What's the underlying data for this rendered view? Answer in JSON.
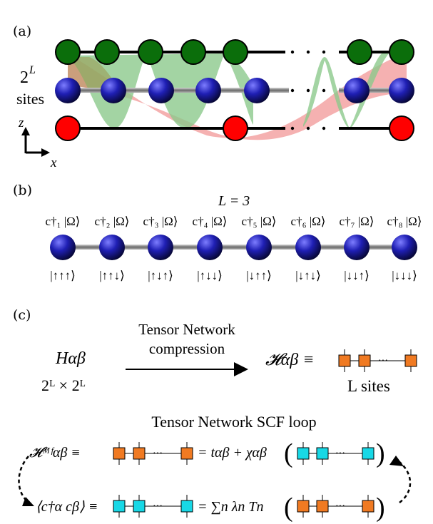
{
  "panel_a": {
    "label": "(a)",
    "sites_exp": "2",
    "sites_power": "L",
    "sites_word": "sites",
    "axis_z": "z",
    "axis_x": "x",
    "ellipsis": ". . ."
  },
  "panel_b": {
    "label": "(b)",
    "title": "L = 3",
    "operators": [
      "c†₁ |Ω⟩",
      "c†₂ |Ω⟩",
      "c†₃ |Ω⟩",
      "c†₄ |Ω⟩",
      "c†₅ |Ω⟩",
      "c†₆ |Ω⟩",
      "c†₇ |Ω⟩",
      "c†₈ |Ω⟩"
    ],
    "states": [
      "|↑↑↑⟩",
      "|↑↑↓⟩",
      "|↑↓↑⟩",
      "|↑↓↓⟩",
      "|↓↑↑⟩",
      "|↓↑↓⟩",
      "|↓↓↑⟩",
      "|↓↓↓⟩"
    ]
  },
  "panel_c": {
    "label": "(c)",
    "hamiltonian": "Hαβ",
    "dimension": "2ᴸ × 2ᴸ",
    "arrow_top": "Tensor Network",
    "arrow_bottom": "compression",
    "compressed": "𝓗αβ ≡",
    "l_sites": "L sites",
    "scf_title": "Tensor Network SCF loop",
    "eq1_lhs": "𝓗ᴹᶠαβ ≡",
    "eq1_mid": "= tαβ + χαβ",
    "eq2_lhs": "⟨c†α cβ⟩ ≡",
    "eq2_mid": "= ∑n λn Tn",
    "dots": "···"
  },
  "colors": {
    "green": "#0b6e0b",
    "blue": "#1a1aa8",
    "red": "#ff0000",
    "orange": "#f07a22",
    "cyan": "#18d8e6",
    "wave_green": "#8cc98c",
    "wave_red": "#f3a3a3"
  }
}
